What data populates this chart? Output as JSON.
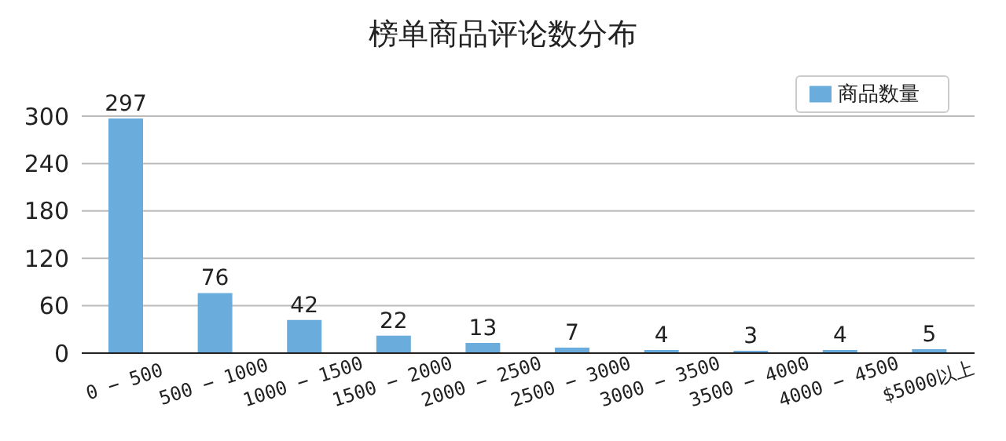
{
  "chart_data": {
    "type": "bar",
    "title": "榜单商品评论数分布",
    "categories": [
      "0 − 500",
      "500 − 1000",
      "1000 − 1500",
      "1500 − 2000",
      "2000 − 2500",
      "2500 − 3000",
      "3000 − 3500",
      "3500 − 4000",
      "4000 − 4500",
      "$5000以上"
    ],
    "series": [
      {
        "name": "商品数量",
        "color": "#6aacdc",
        "values": [
          297,
          76,
          42,
          22,
          13,
          7,
          4,
          3,
          4,
          5
        ]
      }
    ],
    "ylim": [
      0,
      300
    ],
    "yticks": [
      0,
      60,
      120,
      180,
      240,
      300
    ],
    "grid": "y",
    "legend": "top right",
    "data_labels": true
  }
}
